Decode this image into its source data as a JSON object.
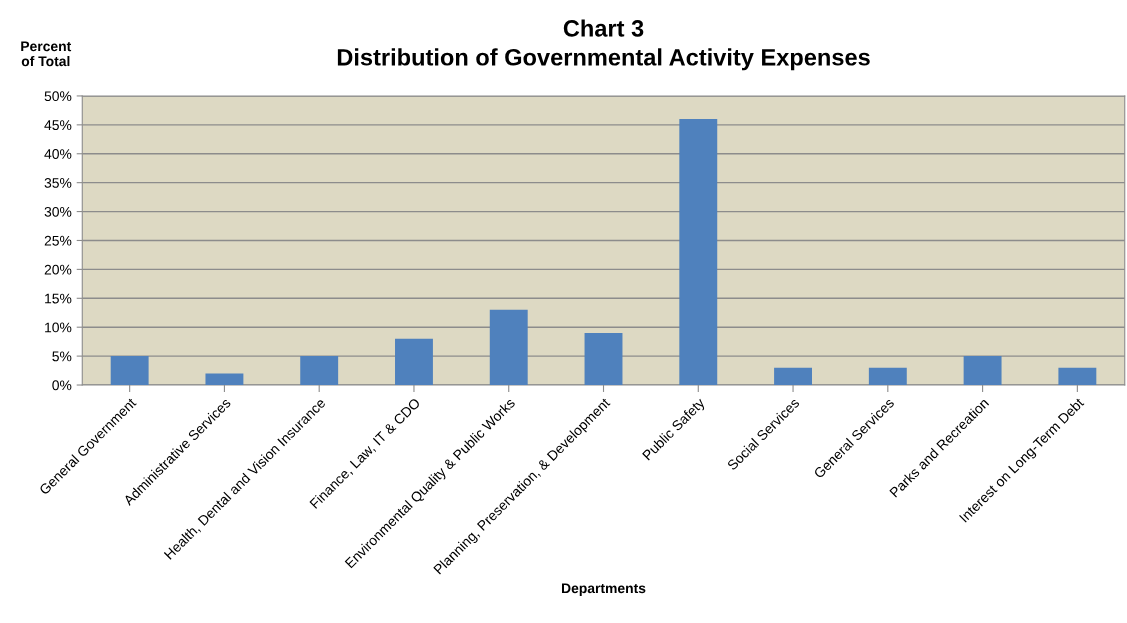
{
  "chart_data": {
    "type": "bar",
    "title": "Chart 3\nDistribution of Governmental Activity Expenses",
    "xlabel": "Departments",
    "ylabel": "Percent\nof Total",
    "categories": [
      "General Government",
      "Administrative Services",
      "Health, Dental and Vision Insurance",
      "Finance, Law, IT & CDO",
      "Environmental Quality & Public Works",
      "Planning, Preservation, & Development",
      "Public Safety",
      "Social Services",
      "General Services",
      "Parks and Recreation",
      "Interest on Long-Term Debt"
    ],
    "values": [
      5,
      2,
      5,
      8,
      13,
      9,
      46,
      3,
      3,
      5,
      3
    ],
    "color": "#4f81bd",
    "ylim": [
      0,
      50
    ],
    "yticks": [
      {
        "value": 0,
        "label": "0%"
      },
      {
        "value": 5,
        "label": "5%"
      },
      {
        "value": 10,
        "label": "10%"
      },
      {
        "value": 15,
        "label": "15%"
      },
      {
        "value": 20,
        "label": "20%"
      },
      {
        "value": 25,
        "label": "25%"
      },
      {
        "value": 30,
        "label": "30%"
      },
      {
        "value": 35,
        "label": "35%"
      },
      {
        "value": 40,
        "label": "40%"
      },
      {
        "value": 45,
        "label": "45%"
      },
      {
        "value": 50,
        "label": "50%"
      }
    ],
    "grid": "y",
    "legend": false
  }
}
